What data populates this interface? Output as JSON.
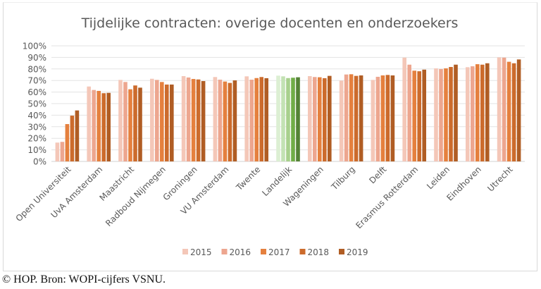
{
  "chart_data": {
    "type": "bar",
    "title": "Tijdelijke contracten: overige docenten en onderzoekers",
    "xlabel": "",
    "ylabel": "",
    "ylim": [
      0,
      100
    ],
    "y_ticks": [
      "0%",
      "10%",
      "20%",
      "30%",
      "40%",
      "50%",
      "60%",
      "70%",
      "80%",
      "90%",
      "100%"
    ],
    "grid": true,
    "legend_position": "bottom",
    "categories": [
      "Open Universiteit",
      "UvA Amsterdam",
      "Maastricht",
      "Radboud Nijmegen",
      "Groningen",
      "VU Amsterdam",
      "Twente",
      "Landelijk",
      "Wageningen",
      "Tilburg",
      "Delft",
      "Erasmus Rotterdam",
      "Leiden",
      "Eindhoven",
      "Utrecht"
    ],
    "highlight_category": "Landelijk",
    "series": [
      {
        "name": "2015",
        "color": "#f4c7b8",
        "highlight_color": "#dcefd3",
        "values": [
          16.3,
          64.8,
          70.5,
          71.5,
          73.8,
          73.0,
          73.6,
          74.2,
          73.8,
          69.9,
          70.5,
          89.8,
          80.5,
          81.5,
          90.0
        ]
      },
      {
        "name": "2016",
        "color": "#eda68f",
        "highlight_color": "#c3e2b4",
        "values": [
          16.9,
          61.8,
          68.7,
          70.5,
          72.6,
          70.7,
          70.7,
          73.6,
          73.0,
          75.2,
          73.2,
          83.7,
          79.9,
          82.3,
          89.8
        ]
      },
      {
        "name": "2017",
        "color": "#e5803e",
        "highlight_color": "#a8d08d",
        "values": [
          32.3,
          61.0,
          62.4,
          68.7,
          71.3,
          69.1,
          72.1,
          72.1,
          72.8,
          75.4,
          74.4,
          78.5,
          80.5,
          84.1,
          86.2
        ]
      },
      {
        "name": "2018",
        "color": "#cc6b2c",
        "highlight_color": "#70ad47",
        "values": [
          39.6,
          59.0,
          65.7,
          66.5,
          70.9,
          67.9,
          73.0,
          72.4,
          72.0,
          74.0,
          74.8,
          78.0,
          81.7,
          83.7,
          84.9
        ]
      },
      {
        "name": "2019",
        "color": "#b05d24",
        "highlight_color": "#548235",
        "values": [
          44.1,
          59.3,
          63.8,
          66.5,
          69.5,
          70.1,
          72.0,
          72.8,
          74.0,
          74.4,
          74.4,
          79.4,
          83.7,
          84.9,
          88.2
        ]
      }
    ]
  },
  "caption": "© HOP. Bron: WOPI-cijfers VSNU."
}
